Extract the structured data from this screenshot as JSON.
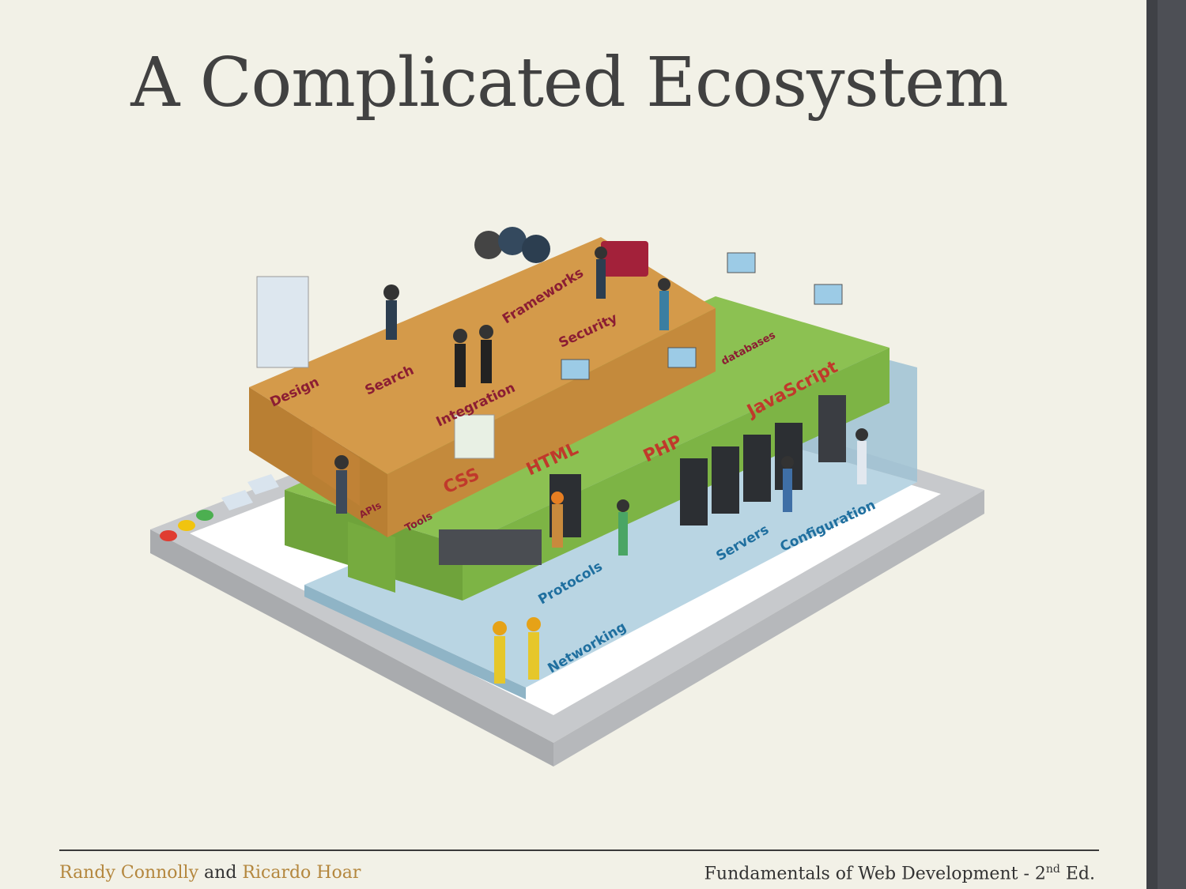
{
  "slide": {
    "title": "A Complicated Ecosystem"
  },
  "diagram": {
    "upper_level_labels": [
      "Design",
      "Search",
      "Integration",
      "Frameworks",
      "Security"
    ],
    "middle_level_labels": [
      "APIs",
      "Tools",
      "CSS",
      "HTML",
      "PHP",
      "JavaScript",
      "databases"
    ],
    "lower_level_labels": [
      "Protocols",
      "Networking",
      "Servers",
      "Configuration"
    ],
    "colors": {
      "upper_platform": "#d49a4a",
      "middle_platform": "#8cc152",
      "lower_platform": "#b9d5e3",
      "upper_text": "#8b1d33",
      "middle_text": "#c0392b",
      "lower_text": "#1f6f9f"
    }
  },
  "footer": {
    "author1": "Randy Connolly",
    "connector": "and",
    "author2": "Ricardo Hoar",
    "book_prefix": "Fundamentals of Web Development - 2",
    "book_sup": "nd",
    "book_suffix": " Ed."
  }
}
